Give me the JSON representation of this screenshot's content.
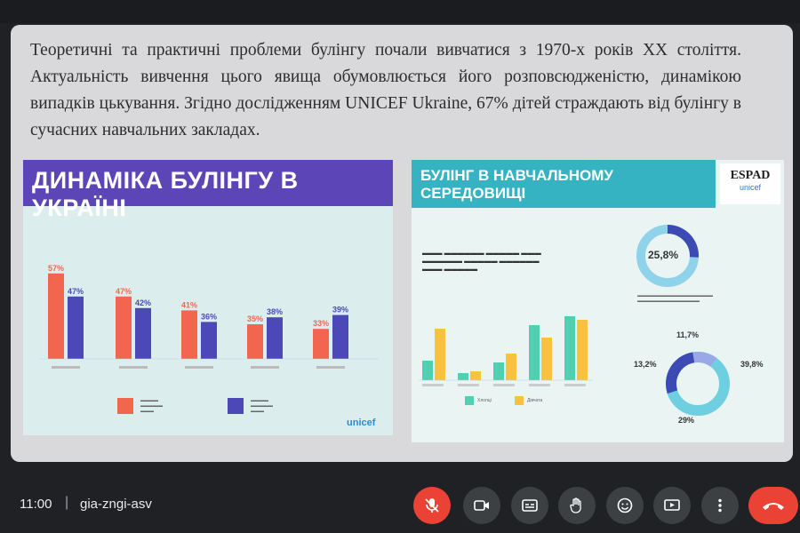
{
  "intro_text": "Теоретичні та практичні проблеми булінгу почали вивчатися з 1970-х років XX століття. Актуальність вивчення цього явища обумовлюється його розповсюдженістю, динамікою випадків цькування. Згідно дослідженням UNICEF Ukraine, 67% дітей страждають від булінгу в сучасних навчальних закладах.",
  "left_panel": {
    "title": "ДИНАМІКА БУЛІНГУ В УКРАЇНІ",
    "logo": "unicef"
  },
  "right_panel": {
    "title_line1": "БУЛІНГ В НАВЧАЛЬНОМУ",
    "title_line2": "СЕРЕДОВИЩІ",
    "badge_title": "ESPAD",
    "badge_sub": "unicef",
    "donut_top_value": "25,8%",
    "donut_bottom_values": [
      "11,7%",
      "13,2%",
      "39,8%",
      "29%"
    ],
    "legend": [
      "Хлопці",
      "Дівчата"
    ]
  },
  "chart_data": [
    {
      "type": "bar",
      "title": "ДИНАМІКА БУЛІНГУ В УКРАЇНІ",
      "categories": [
        "",
        "",
        "",
        "",
        ""
      ],
      "series": [
        {
          "values": [
            57,
            47,
            41,
            35,
            33
          ],
          "labels": [
            "57%",
            "47%",
            "41%",
            "35%",
            "33%"
          ],
          "color": "#f2654f"
        },
        {
          "values": [
            47,
            42,
            36,
            38,
            39
          ],
          "labels": [
            "47%",
            "42%",
            "36%",
            "38%",
            "39%"
          ],
          "color": "#4d48b8"
        }
      ],
      "ylim": [
        0,
        70
      ]
    }
  ],
  "meeting": {
    "time": "11:00",
    "separator": "|",
    "code": "gia-zngi-asv"
  },
  "colors": {
    "left_banner": "#5c45b6",
    "right_banner": "#36b3c3",
    "bar_a": "#f2654f",
    "bar_b": "#4d48b8",
    "end_call": "#ea4335"
  },
  "controls": [
    "mic-off-icon",
    "camera-icon",
    "captions-icon",
    "hand-icon",
    "emoji-icon",
    "present-icon",
    "more-icon",
    "end-call-icon"
  ]
}
